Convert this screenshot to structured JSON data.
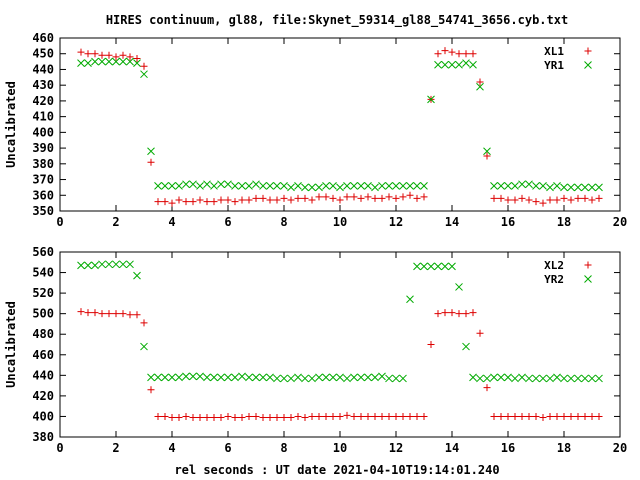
{
  "chart_data": {
    "title": "HIRES continuum, gl88, file:Skynet_59314_gl88_54741_3656.cyb.txt",
    "xlabel": "rel seconds : UT date 2021-04-10T19:14:01.240",
    "panels": [
      {
        "type": "scatter",
        "ylabel": "Uncalibrated",
        "xlim": [
          0,
          20
        ],
        "ylim": [
          350,
          460
        ],
        "xticks": [
          0,
          2,
          4,
          6,
          8,
          10,
          12,
          14,
          16,
          18,
          20
        ],
        "yticks": [
          350,
          360,
          370,
          380,
          390,
          400,
          410,
          420,
          430,
          440,
          450,
          460
        ],
        "legend_position": "top-right",
        "series": [
          {
            "name": "XL1",
            "marker": "plus",
            "color": "#dd0000",
            "x": [
              0.75,
              1.0,
              1.25,
              1.5,
              1.75,
              2.0,
              2.25,
              2.5,
              2.75,
              3.0,
              3.25,
              3.5,
              3.75,
              4.0,
              4.25,
              4.5,
              4.75,
              5.0,
              5.25,
              5.5,
              5.75,
              6.0,
              6.25,
              6.5,
              6.75,
              7.0,
              7.25,
              7.5,
              7.75,
              8.0,
              8.25,
              8.5,
              8.75,
              9.0,
              9.25,
              9.5,
              9.75,
              10.0,
              10.25,
              10.5,
              10.75,
              11.0,
              11.25,
              11.5,
              11.75,
              12.0,
              12.25,
              12.5,
              12.75,
              13.0,
              13.25,
              13.5,
              13.75,
              14.0,
              14.25,
              14.5,
              14.75,
              15.0,
              15.25,
              15.5,
              15.75,
              16.0,
              16.25,
              16.5,
              16.75,
              17.0,
              17.25,
              17.5,
              17.75,
              18.0,
              18.25,
              18.5,
              18.75,
              19.0,
              19.25
            ],
            "y": [
              451,
              450,
              450,
              449,
              449,
              448,
              449,
              448,
              447,
              442,
              381,
              356,
              356,
              355,
              357,
              356,
              356,
              357,
              356,
              356,
              357,
              357,
              356,
              357,
              357,
              358,
              358,
              357,
              357,
              358,
              357,
              358,
              358,
              357,
              359,
              359,
              358,
              357,
              359,
              359,
              358,
              359,
              358,
              358,
              359,
              358,
              359,
              360,
              358,
              359,
              421,
              450,
              452,
              451,
              450,
              450,
              450,
              432,
              385,
              358,
              358,
              357,
              357,
              358,
              357,
              356,
              355,
              357,
              357,
              358,
              357,
              358,
              358,
              357,
              358
            ]
          },
          {
            "name": "YR1",
            "marker": "cross",
            "color": "#00aa00",
            "x": [
              0.75,
              1.0,
              1.25,
              1.5,
              1.75,
              2.0,
              2.25,
              2.5,
              2.75,
              3.0,
              3.25,
              3.5,
              3.75,
              4.0,
              4.25,
              4.5,
              4.75,
              5.0,
              5.25,
              5.5,
              5.75,
              6.0,
              6.25,
              6.5,
              6.75,
              7.0,
              7.25,
              7.5,
              7.75,
              8.0,
              8.25,
              8.5,
              8.75,
              9.0,
              9.25,
              9.5,
              9.75,
              10.0,
              10.25,
              10.5,
              10.75,
              11.0,
              11.25,
              11.5,
              11.75,
              12.0,
              12.25,
              12.5,
              12.75,
              13.0,
              13.25,
              13.5,
              13.75,
              14.0,
              14.25,
              14.5,
              14.75,
              15.0,
              15.25,
              15.5,
              15.75,
              16.0,
              16.25,
              16.5,
              16.75,
              17.0,
              17.25,
              17.5,
              17.75,
              18.0,
              18.25,
              18.5,
              18.75,
              19.0,
              19.25
            ],
            "y": [
              444,
              444,
              445,
              445,
              445,
              445,
              445,
              445,
              444,
              437,
              388,
              366,
              366,
              366,
              366,
              367,
              367,
              366,
              367,
              366,
              367,
              367,
              366,
              366,
              366,
              367,
              366,
              366,
              366,
              366,
              365,
              366,
              365,
              365,
              365,
              366,
              366,
              365,
              366,
              366,
              366,
              366,
              365,
              366,
              366,
              366,
              366,
              366,
              366,
              366,
              421,
              443,
              443,
              443,
              443,
              444,
              443,
              429,
              388,
              366,
              366,
              366,
              366,
              367,
              367,
              366,
              366,
              365,
              366,
              365,
              365,
              365,
              365,
              365,
              365
            ]
          }
        ]
      },
      {
        "type": "scatter",
        "ylabel": "Uncalibrated",
        "xlim": [
          0,
          20
        ],
        "ylim": [
          380,
          560
        ],
        "xticks": [
          0,
          2,
          4,
          6,
          8,
          10,
          12,
          14,
          16,
          18,
          20
        ],
        "yticks": [
          380,
          400,
          420,
          440,
          460,
          480,
          500,
          520,
          540,
          560
        ],
        "legend_position": "top-right",
        "series": [
          {
            "name": "XL2",
            "marker": "plus",
            "color": "#dd0000",
            "x": [
              0.75,
              1.0,
              1.25,
              1.5,
              1.75,
              2.0,
              2.25,
              2.5,
              2.75,
              3.0,
              3.25,
              3.5,
              3.75,
              4.0,
              4.25,
              4.5,
              4.75,
              5.0,
              5.25,
              5.5,
              5.75,
              6.0,
              6.25,
              6.5,
              6.75,
              7.0,
              7.25,
              7.5,
              7.75,
              8.0,
              8.25,
              8.5,
              8.75,
              9.0,
              9.25,
              9.5,
              9.75,
              10.0,
              10.25,
              10.5,
              10.75,
              11.0,
              11.25,
              11.5,
              11.75,
              12.0,
              12.25,
              12.5,
              12.75,
              13.0,
              13.25,
              13.5,
              13.75,
              14.0,
              14.25,
              14.5,
              14.75,
              15.0,
              15.25,
              15.5,
              15.75,
              16.0,
              16.25,
              16.5,
              16.75,
              17.0,
              17.25,
              17.5,
              17.75,
              18.0,
              18.25,
              18.5,
              18.75,
              19.0,
              19.25
            ],
            "y": [
              502,
              501,
              501,
              500,
              500,
              500,
              500,
              499,
              499,
              491,
              426,
              400,
              400,
              399,
              399,
              400,
              399,
              399,
              399,
              399,
              399,
              400,
              399,
              399,
              400,
              400,
              399,
              399,
              399,
              399,
              399,
              400,
              399,
              400,
              400,
              400,
              400,
              400,
              401,
              400,
              400,
              400,
              400,
              400,
              400,
              400,
              400,
              400,
              400,
              400,
              470,
              500,
              501,
              501,
              500,
              500,
              501,
              481,
              428,
              400,
              400,
              400,
              400,
              400,
              400,
              400,
              399,
              400,
              400,
              400,
              400,
              400,
              400,
              400,
              400
            ]
          },
          {
            "name": "YR2",
            "marker": "cross",
            "color": "#00aa00",
            "x": [
              0.75,
              1.0,
              1.25,
              1.5,
              1.75,
              2.0,
              2.25,
              2.5,
              2.75,
              3.0,
              3.25,
              3.5,
              3.75,
              4.0,
              4.25,
              4.5,
              4.75,
              5.0,
              5.25,
              5.5,
              5.75,
              6.0,
              6.25,
              6.5,
              6.75,
              7.0,
              7.25,
              7.5,
              7.75,
              8.0,
              8.25,
              8.5,
              8.75,
              9.0,
              9.25,
              9.5,
              9.75,
              10.0,
              10.25,
              10.5,
              10.75,
              11.0,
              11.25,
              11.5,
              11.75,
              12.0,
              12.25,
              12.5,
              12.75,
              13.0,
              13.25,
              13.5,
              13.75,
              14.0,
              14.25,
              14.5,
              14.75,
              15.0,
              15.25,
              15.5,
              15.75,
              16.0,
              16.25,
              16.5,
              16.75,
              17.0,
              17.25,
              17.5,
              17.75,
              18.0,
              18.25,
              18.5,
              18.75,
              19.0,
              19.25
            ],
            "y": [
              547,
              547,
              547,
              548,
              548,
              548,
              548,
              548,
              537,
              468,
              438,
              438,
              438,
              438,
              438,
              439,
              439,
              439,
              438,
              438,
              438,
              438,
              438,
              439,
              438,
              438,
              438,
              438,
              437,
              437,
              437,
              438,
              437,
              437,
              438,
              438,
              438,
              438,
              437,
              438,
              438,
              438,
              438,
              439,
              437,
              437,
              437,
              514,
              546,
              546,
              546,
              546,
              546,
              546,
              526,
              468,
              438,
              437,
              437,
              438,
              438,
              438,
              437,
              438,
              437,
              437,
              437,
              437,
              438,
              437,
              437,
              437,
              437,
              437,
              437
            ]
          }
        ]
      }
    ]
  }
}
